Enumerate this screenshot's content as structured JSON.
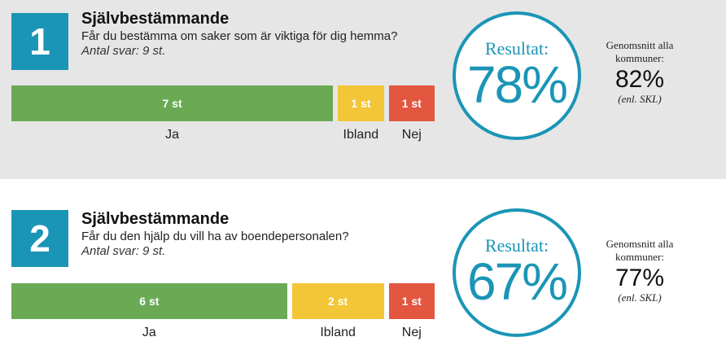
{
  "chart_data": [
    {
      "type": "bar",
      "number": "1",
      "title": "Självbestämmande",
      "question": "Får du bestämma om saker som är viktiga för dig hemma?",
      "responses": "Antal svar: 9 st.",
      "categories": [
        "Ja",
        "Ibland",
        "Nej"
      ],
      "values": [
        7,
        1,
        1
      ],
      "value_labels": [
        "7 st",
        "1 st",
        "1 st"
      ],
      "colors": [
        "#6aaa55",
        "#f2c636",
        "#e35640"
      ],
      "result_label": "Resultat:",
      "result_value": "78%",
      "average_label": "Genomsnitt alla kommuner:",
      "average_value": "82%",
      "average_source": "(enl. SKL)"
    },
    {
      "type": "bar",
      "number": "2",
      "title": "Självbestämmande",
      "question": "Får du den hjälp du vill ha av boendepersonalen?",
      "responses": "Antal svar: 9 st.",
      "categories": [
        "Ja",
        "Ibland",
        "Nej"
      ],
      "values": [
        6,
        2,
        1
      ],
      "value_labels": [
        "6 st",
        "2 st",
        "1 st"
      ],
      "colors": [
        "#6aaa55",
        "#f2c636",
        "#e35640"
      ],
      "result_label": "Resultat:",
      "result_value": "67%",
      "average_label": "Genomsnitt alla kommuner:",
      "average_value": "77%",
      "average_source": "(enl. SKL)"
    }
  ]
}
